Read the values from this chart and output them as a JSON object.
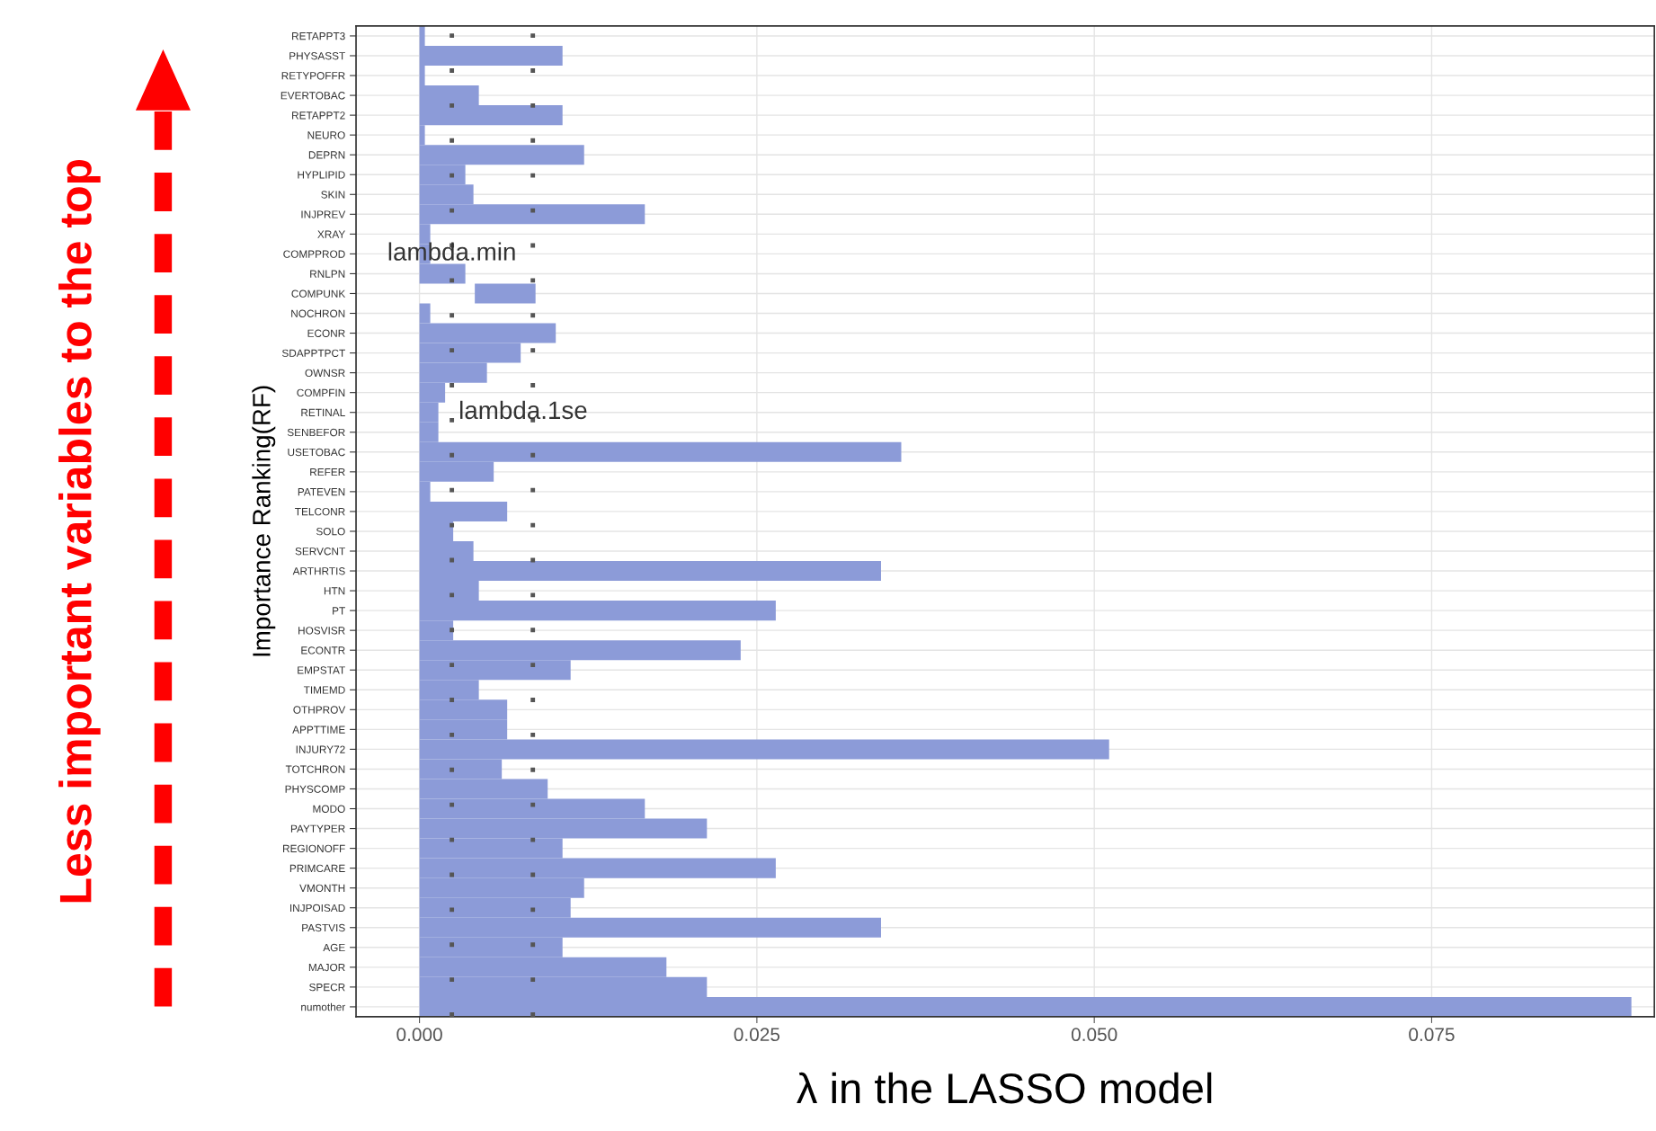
{
  "chart_data": {
    "type": "bar",
    "orientation": "horizontal",
    "xlabel": "λ in the LASSO model",
    "ylabel": "Importance Ranking(RF)",
    "categories": [
      "RETAPPT3",
      "PHYSASST",
      "RETYPOFFR",
      "EVERTOBAC",
      "RETAPPT2",
      "NEURO",
      "DEPRN",
      "HYPLIPID",
      "SKIN",
      "INJPREV",
      "XRAY",
      "COMPPROD",
      "RNLPN",
      "COMPUNK",
      "NOCHRON",
      "ECONR",
      "SDAPPTPCT",
      "OWNSR",
      "COMPFIN",
      "RETINAL",
      "SENBEFOR",
      "USETOBAC",
      "REFER",
      "PATEVEN",
      "TELCONR",
      "SOLO",
      "SERVCNT",
      "ARTHRTIS",
      "HTN",
      "PT",
      "HOSVISR",
      "ECONTR",
      "EMPSTAT",
      "TIMEMD",
      "OTHPROV",
      "APPTTIME",
      "INJURY72",
      "TOTCHRON",
      "PHYSCOMP",
      "MODO",
      "PAYTYPER",
      "REGIONOFF",
      "PRIMCARE",
      "VMONTH",
      "INJPOISAD",
      "PASTVIS",
      "AGE",
      "MAJOR",
      "SPECR",
      "numother"
    ],
    "values": [
      0.0004,
      0.0106,
      0.0004,
      0.0044,
      0.0106,
      0.0004,
      0.0122,
      0.0034,
      0.004,
      0.0167,
      0.0008,
      0.0008,
      0.0034,
      0.0045,
      0.0008,
      0.0101,
      0.0075,
      0.005,
      0.0019,
      0.0014,
      0.0014,
      0.0357,
      0.0055,
      0.0008,
      0.0065,
      0.0025,
      0.004,
      0.0342,
      0.0044,
      0.0264,
      0.0025,
      0.0238,
      0.0112,
      0.0044,
      0.0065,
      0.0065,
      0.0511,
      0.0061,
      0.0095,
      0.0167,
      0.0213,
      0.0106,
      0.0264,
      0.0122,
      0.0112,
      0.0342,
      0.0106,
      0.0183,
      0.0213,
      0.0898
    ],
    "base": [
      0,
      0,
      0,
      0,
      0,
      0,
      0,
      0,
      0,
      0,
      0,
      0,
      0,
      0.0041,
      0,
      0,
      0,
      0,
      0,
      0,
      0,
      0,
      0,
      0,
      0,
      0,
      0,
      0,
      0,
      0,
      0,
      0,
      0,
      0,
      0,
      0,
      0,
      0,
      0,
      0,
      0,
      0,
      0,
      0,
      0,
      0,
      0,
      0,
      0,
      0
    ],
    "color": "#8c9bd8",
    "xlim": [
      -0.0047,
      0.0915
    ],
    "xticks": [
      {
        "value": 0,
        "label": "0.000"
      },
      {
        "value": 0.025,
        "label": "0.025"
      },
      {
        "value": 0.05,
        "label": "0.050"
      },
      {
        "value": 0.075,
        "label": "0.075"
      }
    ],
    "grid": true,
    "ref_lines": [
      {
        "axis": "x",
        "value": 0.0024,
        "color": "#555555",
        "line_style": "dotted"
      },
      {
        "axis": "x",
        "value": 0.0084,
        "color": "#555555",
        "line_style": "dotted"
      }
    ],
    "annotations": [
      {
        "text": "lambda.min",
        "x": 0.0024,
        "y": "COMPPROD"
      },
      {
        "text": "lambda.1se",
        "x": 0.0084,
        "y": "RETINAL"
      },
      "Less important variables to the top"
    ]
  }
}
